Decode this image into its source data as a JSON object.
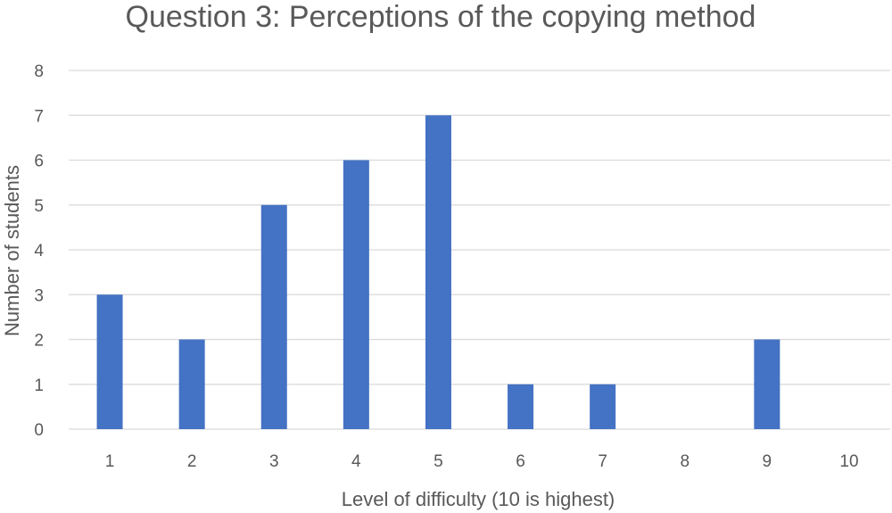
{
  "chart_data": {
    "type": "bar",
    "title": "Question 3: Perceptions of the copying method",
    "xlabel": "Level of difficulty (10 is highest)",
    "ylabel": "Number of students",
    "categories": [
      "1",
      "2",
      "3",
      "4",
      "5",
      "6",
      "7",
      "8",
      "9",
      "10"
    ],
    "values": [
      3,
      2,
      5,
      6,
      7,
      1,
      1,
      0,
      2,
      0
    ],
    "ylim": [
      0,
      8
    ],
    "yticks": [
      0,
      1,
      2,
      3,
      4,
      5,
      6,
      7,
      8
    ],
    "grid": true,
    "legend": "none",
    "bar_color": "#4472c4"
  }
}
